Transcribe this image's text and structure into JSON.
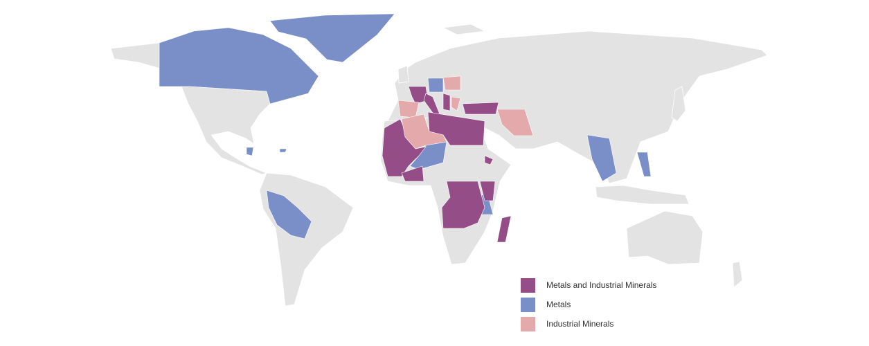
{
  "colors": {
    "land": "#e3e3e3",
    "metals_and_industrial_minerals": "#944d87",
    "metals": "#7a8fc8",
    "industrial_minerals": "#e3a9ab"
  },
  "legend": {
    "items": [
      {
        "label": "Metals and Industrial Minerals",
        "color": "#944d87"
      },
      {
        "label": "Metals",
        "color": "#7a8fc8"
      },
      {
        "label": "Industrial Minerals",
        "color": "#e3a9ab"
      }
    ]
  }
}
